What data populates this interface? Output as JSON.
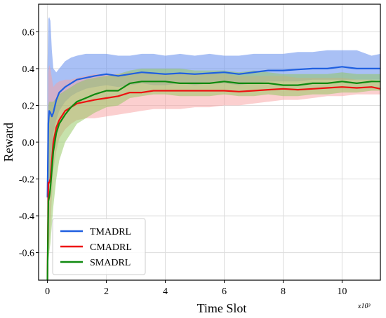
{
  "chart_data": {
    "type": "line",
    "xlabel": "Time Slot",
    "ylabel": "Reward",
    "x_multiplier_label": "x10³",
    "xlim": [
      -0.3,
      11.3
    ],
    "ylim": [
      -0.75,
      0.75
    ],
    "x_ticks": [
      0,
      2,
      4,
      6,
      8,
      10
    ],
    "x_tick_labels": [
      "0",
      "2",
      "4",
      "6",
      "8",
      "10"
    ],
    "y_ticks": [
      0.6,
      0.4,
      0.2,
      0.0,
      -0.2,
      -0.4,
      -0.6
    ],
    "y_tick_labels": [
      "0.6",
      "0.4",
      "0.2",
      "0.0",
      "-0.2",
      "-0.4",
      "-0.6"
    ],
    "grid": true,
    "legend_position": "bottom-left",
    "series": [
      {
        "name": "TMADRL",
        "color": "#1f5fe0",
        "band_color": "#6f96ee",
        "x": [
          0,
          0.03,
          0.06,
          0.1,
          0.15,
          0.2,
          0.3,
          0.4,
          0.6,
          0.8,
          1.0,
          1.3,
          1.6,
          2.0,
          2.4,
          2.8,
          3.2,
          3.6,
          4.0,
          4.5,
          5.0,
          5.5,
          6.0,
          6.5,
          7.0,
          7.5,
          8.0,
          8.5,
          9.0,
          9.5,
          10.0,
          10.5,
          11.0,
          11.3
        ],
        "values": [
          -0.3,
          0.1,
          0.17,
          0.16,
          0.14,
          0.16,
          0.23,
          0.27,
          0.3,
          0.32,
          0.34,
          0.35,
          0.36,
          0.37,
          0.36,
          0.37,
          0.38,
          0.375,
          0.37,
          0.375,
          0.37,
          0.375,
          0.38,
          0.37,
          0.38,
          0.39,
          0.39,
          0.395,
          0.4,
          0.4,
          0.41,
          0.4,
          0.4,
          0.4
        ],
        "upper": [
          0.4,
          0.67,
          0.68,
          0.66,
          0.5,
          0.4,
          0.38,
          0.4,
          0.44,
          0.46,
          0.47,
          0.48,
          0.48,
          0.48,
          0.47,
          0.47,
          0.48,
          0.48,
          0.47,
          0.48,
          0.47,
          0.48,
          0.47,
          0.47,
          0.48,
          0.48,
          0.48,
          0.49,
          0.49,
          0.5,
          0.5,
          0.5,
          0.47,
          0.48
        ],
        "lower": [
          -0.6,
          -0.4,
          -0.25,
          -0.2,
          -0.1,
          0.05,
          0.12,
          0.17,
          0.22,
          0.25,
          0.27,
          0.29,
          0.3,
          0.31,
          0.3,
          0.31,
          0.32,
          0.31,
          0.31,
          0.32,
          0.31,
          0.32,
          0.32,
          0.31,
          0.32,
          0.33,
          0.33,
          0.33,
          0.34,
          0.34,
          0.34,
          0.34,
          0.34,
          0.34
        ]
      },
      {
        "name": "CMADRL",
        "color": "#ee1111",
        "band_color": "#f7a0a0",
        "x": [
          0,
          0.03,
          0.06,
          0.1,
          0.15,
          0.2,
          0.3,
          0.4,
          0.6,
          0.8,
          1.0,
          1.3,
          1.6,
          2.0,
          2.4,
          2.8,
          3.2,
          3.6,
          4.0,
          4.5,
          5.0,
          5.5,
          6.0,
          6.5,
          7.0,
          7.5,
          8.0,
          8.5,
          9.0,
          9.5,
          10.0,
          10.5,
          11.0,
          11.3
        ],
        "values": [
          -0.75,
          -0.22,
          -0.22,
          -0.2,
          -0.1,
          0.0,
          0.08,
          0.12,
          0.17,
          0.19,
          0.21,
          0.22,
          0.23,
          0.24,
          0.25,
          0.27,
          0.27,
          0.28,
          0.28,
          0.28,
          0.28,
          0.28,
          0.28,
          0.275,
          0.28,
          0.285,
          0.29,
          0.285,
          0.29,
          0.295,
          0.3,
          0.295,
          0.3,
          0.29
        ],
        "upper": [
          -0.3,
          0.38,
          0.42,
          0.4,
          0.35,
          0.3,
          0.32,
          0.33,
          0.34,
          0.34,
          0.35,
          0.36,
          0.37,
          0.37,
          0.37,
          0.38,
          0.38,
          0.38,
          0.37,
          0.37,
          0.37,
          0.37,
          0.37,
          0.36,
          0.36,
          0.36,
          0.36,
          0.35,
          0.35,
          0.35,
          0.35,
          0.34,
          0.34,
          0.33
        ],
        "lower": [
          -0.75,
          -0.6,
          -0.55,
          -0.45,
          -0.3,
          -0.15,
          -0.05,
          0.02,
          0.07,
          0.1,
          0.12,
          0.13,
          0.13,
          0.14,
          0.15,
          0.16,
          0.17,
          0.18,
          0.18,
          0.18,
          0.19,
          0.19,
          0.2,
          0.2,
          0.21,
          0.22,
          0.23,
          0.23,
          0.24,
          0.25,
          0.25,
          0.26,
          0.26,
          0.26
        ]
      },
      {
        "name": "SMADRL",
        "color": "#0f8a0f",
        "band_color": "#8fc55a",
        "x": [
          0,
          0.03,
          0.06,
          0.1,
          0.15,
          0.2,
          0.3,
          0.4,
          0.6,
          0.8,
          1.0,
          1.3,
          1.6,
          2.0,
          2.4,
          2.8,
          3.2,
          3.6,
          4.0,
          4.5,
          5.0,
          5.5,
          6.0,
          6.5,
          7.0,
          7.5,
          8.0,
          8.5,
          9.0,
          9.5,
          10.0,
          10.5,
          11.0,
          11.3
        ],
        "values": [
          -0.75,
          -0.32,
          -0.3,
          -0.25,
          -0.15,
          -0.05,
          0.05,
          0.1,
          0.15,
          0.19,
          0.22,
          0.24,
          0.26,
          0.28,
          0.28,
          0.32,
          0.33,
          0.33,
          0.33,
          0.32,
          0.32,
          0.32,
          0.33,
          0.32,
          0.32,
          0.32,
          0.31,
          0.31,
          0.32,
          0.32,
          0.33,
          0.32,
          0.33,
          0.33
        ],
        "upper": [
          -0.4,
          0.2,
          0.22,
          0.22,
          0.22,
          0.22,
          0.24,
          0.26,
          0.28,
          0.3,
          0.32,
          0.34,
          0.35,
          0.36,
          0.37,
          0.39,
          0.4,
          0.4,
          0.4,
          0.4,
          0.39,
          0.39,
          0.39,
          0.38,
          0.39,
          0.38,
          0.37,
          0.37,
          0.37,
          0.37,
          0.38,
          0.37,
          0.37,
          0.37
        ],
        "lower": [
          -0.75,
          -0.65,
          -0.6,
          -0.55,
          -0.45,
          -0.35,
          -0.2,
          -0.1,
          0.0,
          0.05,
          0.1,
          0.13,
          0.16,
          0.19,
          0.2,
          0.24,
          0.25,
          0.26,
          0.26,
          0.25,
          0.25,
          0.25,
          0.26,
          0.25,
          0.25,
          0.26,
          0.25,
          0.25,
          0.26,
          0.26,
          0.27,
          0.27,
          0.28,
          0.28
        ]
      }
    ]
  }
}
